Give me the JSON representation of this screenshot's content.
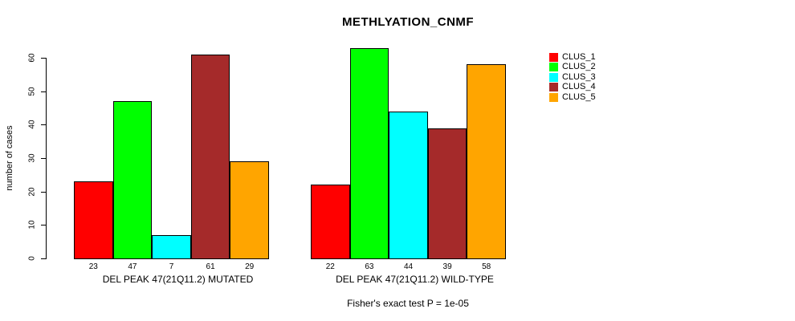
{
  "title": "METHLYATION_CNMF",
  "footer": "Fisher's exact test P = 1e-05",
  "chart_data": {
    "type": "bar",
    "title": "METHLYATION_CNMF",
    "xlabel": "",
    "ylabel": "number of cases",
    "ylim": [
      0,
      63
    ],
    "yticks": [
      0,
      10,
      20,
      30,
      40,
      50,
      60
    ],
    "grid": false,
    "legend_position": "right-outside",
    "bar_border_color": "#000000",
    "categories": [
      "DEL PEAK 47(21Q11.2) MUTATED",
      "DEL PEAK 47(21Q11.2) WILD-TYPE"
    ],
    "series": [
      {
        "name": "CLUS_1",
        "color": "#FF0000",
        "values": [
          23,
          22
        ]
      },
      {
        "name": "CLUS_2",
        "color": "#00FF00",
        "values": [
          47,
          63
        ]
      },
      {
        "name": "CLUS_3",
        "color": "#00FFFF",
        "values": [
          7,
          44
        ]
      },
      {
        "name": "CLUS_4",
        "color": "#A52A2A",
        "values": [
          61,
          39
        ]
      },
      {
        "name": "CLUS_5",
        "color": "#FFA500",
        "values": [
          29,
          58
        ]
      }
    ],
    "bar_value_labels": [
      [
        23,
        47,
        7,
        61,
        29
      ],
      [
        22,
        63,
        44,
        39,
        58
      ]
    ],
    "annotation": "Fisher's exact test P = 1e-05"
  }
}
